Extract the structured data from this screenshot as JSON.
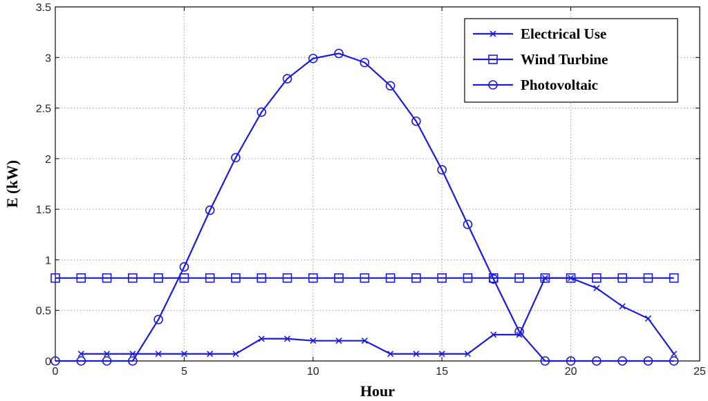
{
  "chart_data": {
    "type": "line",
    "xlabel": "Hour",
    "ylabel": "E (kW)",
    "xlim": [
      0,
      25
    ],
    "ylim": [
      0,
      3.5
    ],
    "xticks": [
      "0",
      "5",
      "10",
      "15",
      "20",
      "25"
    ],
    "yticks": [
      "0",
      "0.5",
      "1",
      "1.5",
      "2",
      "2.5",
      "3",
      "3.5"
    ],
    "grid": true,
    "legend_position": "top-right",
    "line_color": "#1a1adb",
    "series": [
      {
        "name": "Electrical Use",
        "marker": "x",
        "x": [
          1,
          2,
          3,
          4,
          5,
          6,
          7,
          8,
          9,
          10,
          11,
          12,
          13,
          14,
          15,
          16,
          17,
          18,
          19,
          20,
          21,
          22,
          23,
          24
        ],
        "y": [
          0.07,
          0.07,
          0.07,
          0.07,
          0.07,
          0.07,
          0.07,
          0.22,
          0.22,
          0.2,
          0.2,
          0.2,
          0.07,
          0.07,
          0.07,
          0.07,
          0.26,
          0.26,
          0.82,
          0.82,
          0.72,
          0.54,
          0.42,
          0.07
        ]
      },
      {
        "name": "Wind Turbine",
        "marker": "square",
        "x": [
          0,
          1,
          2,
          3,
          4,
          5,
          6,
          7,
          8,
          9,
          10,
          11,
          12,
          13,
          14,
          15,
          16,
          17,
          18,
          19,
          20,
          21,
          22,
          23,
          24
        ],
        "y": [
          0.82,
          0.82,
          0.82,
          0.82,
          0.82,
          0.82,
          0.82,
          0.82,
          0.82,
          0.82,
          0.82,
          0.82,
          0.82,
          0.82,
          0.82,
          0.82,
          0.82,
          0.82,
          0.82,
          0.82,
          0.82,
          0.82,
          0.82,
          0.82,
          0.82
        ]
      },
      {
        "name": "Photovoltaic",
        "marker": "circle",
        "x": [
          0,
          1,
          2,
          3,
          4,
          5,
          6,
          7,
          8,
          9,
          10,
          11,
          12,
          13,
          14,
          15,
          16,
          17,
          18,
          19,
          20,
          21,
          22,
          23,
          24
        ],
        "y": [
          0,
          0,
          0,
          0,
          0.41,
          0.93,
          1.49,
          2.01,
          2.46,
          2.79,
          2.99,
          3.04,
          2.95,
          2.72,
          2.37,
          1.89,
          1.35,
          0.81,
          0.29,
          0,
          0,
          0,
          0,
          0,
          0
        ]
      }
    ]
  }
}
